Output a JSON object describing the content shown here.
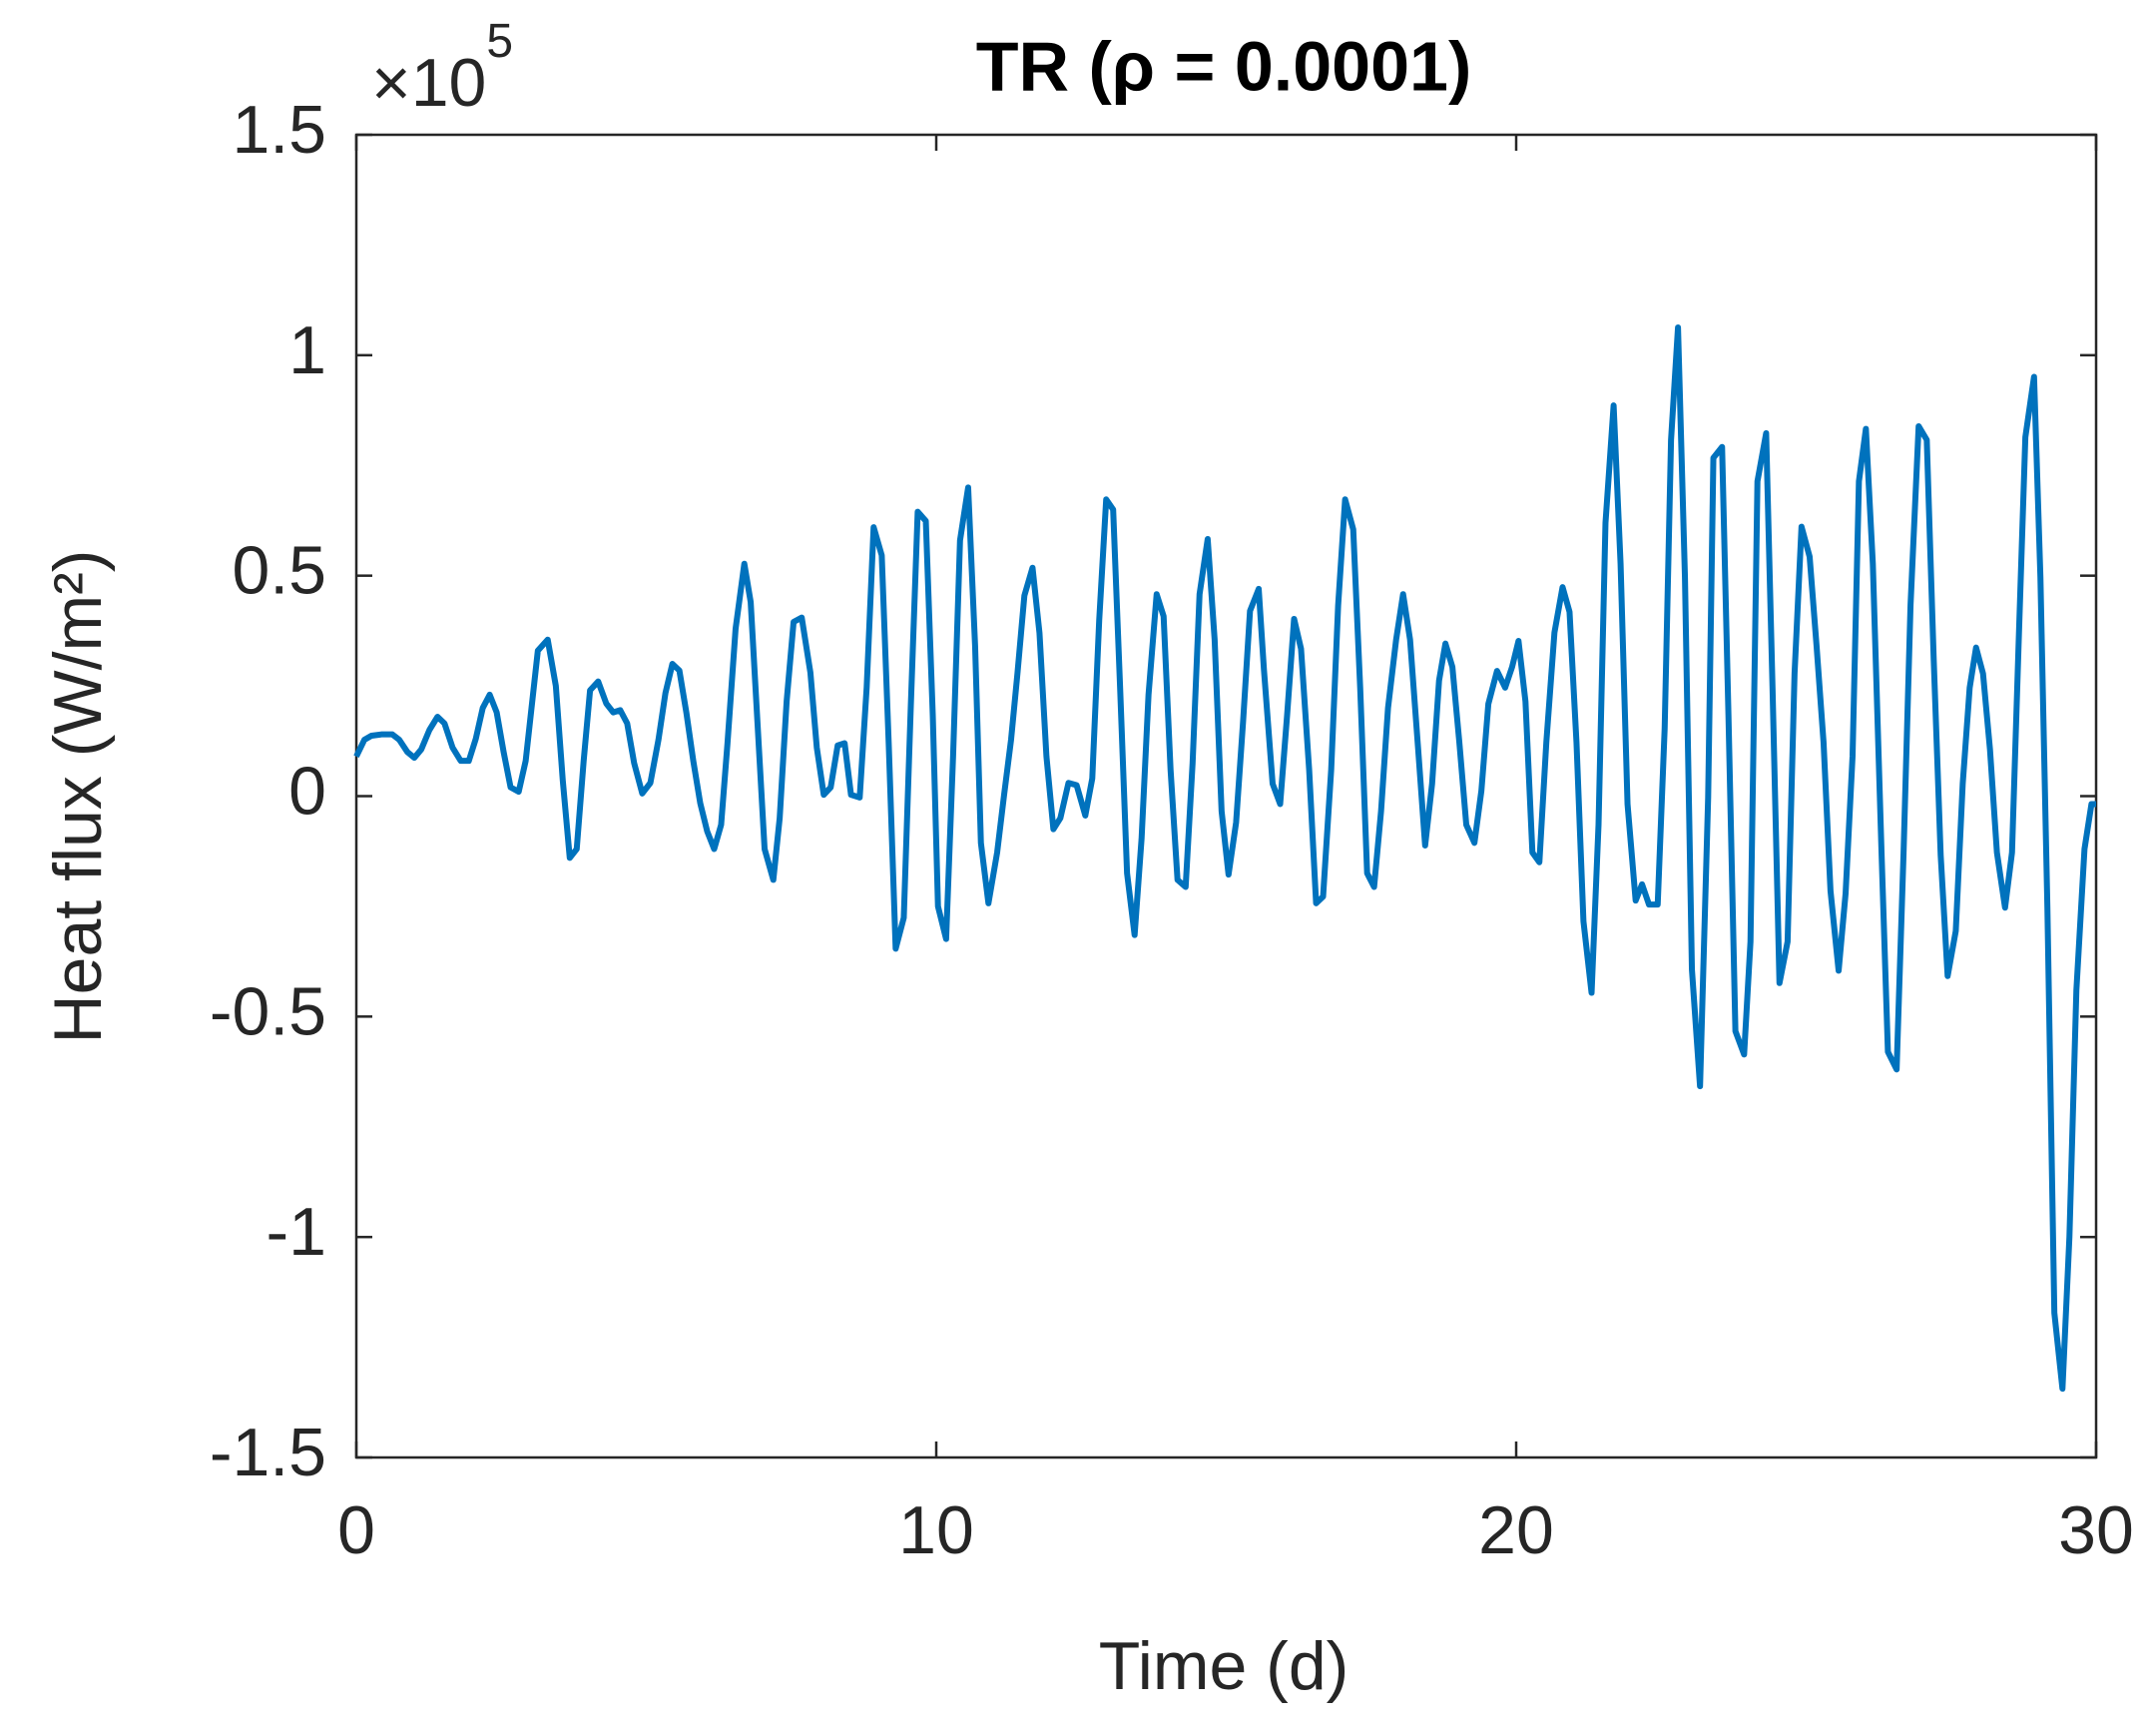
{
  "chart_data": {
    "type": "line",
    "title": "TR (ρ = 0.0001)",
    "x_label": "Time (d)",
    "y_label": "Heat flux (W/m²)",
    "y_multiplier": {
      "base": "×10",
      "exponent": "5"
    },
    "color": "#0072BD",
    "xlim": [
      0,
      30
    ],
    "xticks": [
      0,
      10,
      20,
      30
    ],
    "ylim": [
      -1.5,
      1.5
    ],
    "yticks": [
      -1.5,
      -1,
      -0.5,
      0,
      0.5,
      1,
      1.5
    ],
    "x": [
      0,
      0.14,
      0.26,
      0.43,
      0.62,
      0.74,
      0.88,
      1.0,
      1.12,
      1.26,
      1.4,
      1.52,
      1.66,
      1.8,
      1.94,
      2.06,
      2.18,
      2.3,
      2.42,
      2.54,
      2.66,
      2.8,
      2.92,
      3.13,
      3.3,
      3.44,
      3.56,
      3.68,
      3.8,
      3.92,
      4.03,
      4.17,
      4.31,
      4.43,
      4.55,
      4.67,
      4.79,
      4.93,
      5.07,
      5.21,
      5.33,
      5.45,
      5.57,
      5.69,
      5.81,
      5.93,
      6.05,
      6.17,
      6.29,
      6.4,
      6.54,
      6.69,
      6.8,
      6.92,
      7.04,
      7.19,
      7.3,
      7.42,
      7.54,
      7.68,
      7.83,
      7.94,
      8.06,
      8.18,
      8.3,
      8.42,
      8.53,
      8.68,
      8.8,
      8.92,
      9.06,
      9.18,
      9.3,
      9.44,
      9.56,
      9.68,
      9.82,
      9.94,
      10.03,
      10.17,
      10.29,
      10.41,
      10.55,
      10.67,
      10.77,
      10.9,
      11.05,
      11.17,
      11.29,
      11.4,
      11.52,
      11.66,
      11.78,
      11.9,
      12.02,
      12.14,
      12.28,
      12.42,
      12.57,
      12.69,
      12.81,
      12.93,
      13.05,
      13.17,
      13.29,
      13.42,
      13.54,
      13.66,
      13.8,
      13.92,
      14.04,
      14.16,
      14.3,
      14.42,
      14.54,
      14.68,
      14.8,
      14.92,
      15.04,
      15.17,
      15.29,
      15.41,
      15.56,
      15.65,
      15.8,
      15.93,
      16.05,
      16.17,
      16.29,
      16.43,
      16.55,
      16.67,
      16.81,
      16.93,
      17.05,
      17.19,
      17.31,
      17.43,
      17.55,
      17.67,
      17.79,
      17.93,
      18.05,
      18.17,
      18.31,
      18.43,
      18.55,
      18.67,
      18.78,
      18.9,
      19.02,
      19.14,
      19.28,
      19.4,
      19.52,
      19.67,
      19.81,
      19.93,
      20.04,
      20.16,
      20.28,
      20.4,
      20.52,
      20.66,
      20.8,
      20.92,
      21.04,
      21.16,
      21.3,
      21.42,
      21.54,
      21.68,
      21.8,
      21.92,
      22.06,
      22.17,
      22.29,
      22.44,
      22.56,
      22.67,
      22.79,
      22.91,
      23.03,
      23.17,
      23.31,
      23.4,
      23.55,
      23.66,
      23.78,
      23.93,
      24.04,
      24.16,
      24.31,
      24.42,
      24.54,
      24.68,
      24.8,
      24.92,
      25.06,
      25.18,
      25.3,
      25.42,
      25.56,
      25.68,
      25.8,
      25.91,
      26.03,
      26.15,
      26.3,
      26.41,
      26.56,
      26.68,
      26.8,
      26.94,
      27.08,
      27.2,
      27.32,
      27.44,
      27.58,
      27.7,
      27.82,
      27.93,
      28.05,
      28.17,
      28.29,
      28.43,
      28.55,
      28.67,
      28.78,
      28.93,
      29.04,
      29.16,
      29.28,
      29.42,
      29.54,
      29.66,
      29.8,
      29.92,
      30
    ],
    "values": [
      0.09,
      0.128,
      0.137,
      0.14,
      0.14,
      0.128,
      0.1,
      0.087,
      0.106,
      0.15,
      0.18,
      0.165,
      0.11,
      0.08,
      0.08,
      0.13,
      0.2,
      0.23,
      0.19,
      0.1,
      0.02,
      0.01,
      0.08,
      0.33,
      0.355,
      0.25,
      0.035,
      -0.14,
      -0.12,
      0.08,
      0.24,
      0.26,
      0.21,
      0.19,
      0.195,
      0.165,
      0.075,
      0.006,
      0.03,
      0.128,
      0.234,
      0.3,
      0.285,
      0.19,
      0.08,
      -0.016,
      -0.08,
      -0.12,
      -0.065,
      0.12,
      0.38,
      0.527,
      0.44,
      0.16,
      -0.12,
      -0.19,
      -0.05,
      0.215,
      0.395,
      0.405,
      0.28,
      0.11,
      0.003,
      0.02,
      0.115,
      0.12,
      0.003,
      -0.003,
      0.246,
      0.61,
      0.546,
      0.12,
      -0.346,
      -0.276,
      0.2,
      0.645,
      0.624,
      0.184,
      -0.25,
      -0.324,
      0.09,
      0.58,
      0.7,
      0.34,
      -0.106,
      -0.243,
      -0.128,
      0.003,
      0.128,
      0.278,
      0.455,
      0.518,
      0.37,
      0.09,
      -0.075,
      -0.05,
      0.03,
      0.025,
      -0.044,
      0.04,
      0.4,
      0.673,
      0.65,
      0.246,
      -0.175,
      -0.315,
      -0.097,
      0.23,
      0.458,
      0.408,
      0.06,
      -0.19,
      -0.206,
      0.075,
      0.458,
      0.583,
      0.355,
      -0.034,
      -0.178,
      -0.06,
      0.168,
      0.42,
      0.47,
      0.287,
      0.028,
      -0.018,
      0.184,
      0.402,
      0.334,
      0.06,
      -0.243,
      -0.228,
      0.06,
      0.433,
      0.673,
      0.605,
      0.246,
      -0.175,
      -0.206,
      -0.034,
      0.2,
      0.355,
      0.458,
      0.355,
      0.106,
      -0.112,
      0.028,
      0.262,
      0.346,
      0.293,
      0.122,
      -0.065,
      -0.106,
      0.012,
      0.209,
      0.284,
      0.246,
      0.293,
      0.352,
      0.215,
      -0.128,
      -0.15,
      0.122,
      0.371,
      0.474,
      0.418,
      0.122,
      -0.284,
      -0.446,
      -0.065,
      0.62,
      0.886,
      0.527,
      -0.018,
      -0.237,
      -0.2,
      -0.246,
      -0.246,
      0.153,
      0.808,
      1.063,
      0.496,
      -0.393,
      -0.658,
      -0.003,
      0.767,
      0.792,
      0.184,
      -0.533,
      -0.586,
      -0.33,
      0.714,
      0.823,
      0.246,
      -0.424,
      -0.33,
      0.278,
      0.611,
      0.543,
      0.34,
      0.122,
      -0.215,
      -0.396,
      -0.221,
      0.09,
      0.714,
      0.833,
      0.527,
      -0.128,
      -0.58,
      -0.62,
      -0.128,
      0.433,
      0.839,
      0.808,
      0.309,
      -0.134,
      -0.408,
      -0.306,
      0.028,
      0.246,
      0.337,
      0.278,
      0.106,
      -0.128,
      -0.253,
      -0.128,
      0.371,
      0.814,
      0.951,
      0.496,
      -0.253,
      -1.172,
      -1.344,
      -1.0,
      -0.44,
      -0.12,
      -0.018,
      -0.018
    ]
  }
}
